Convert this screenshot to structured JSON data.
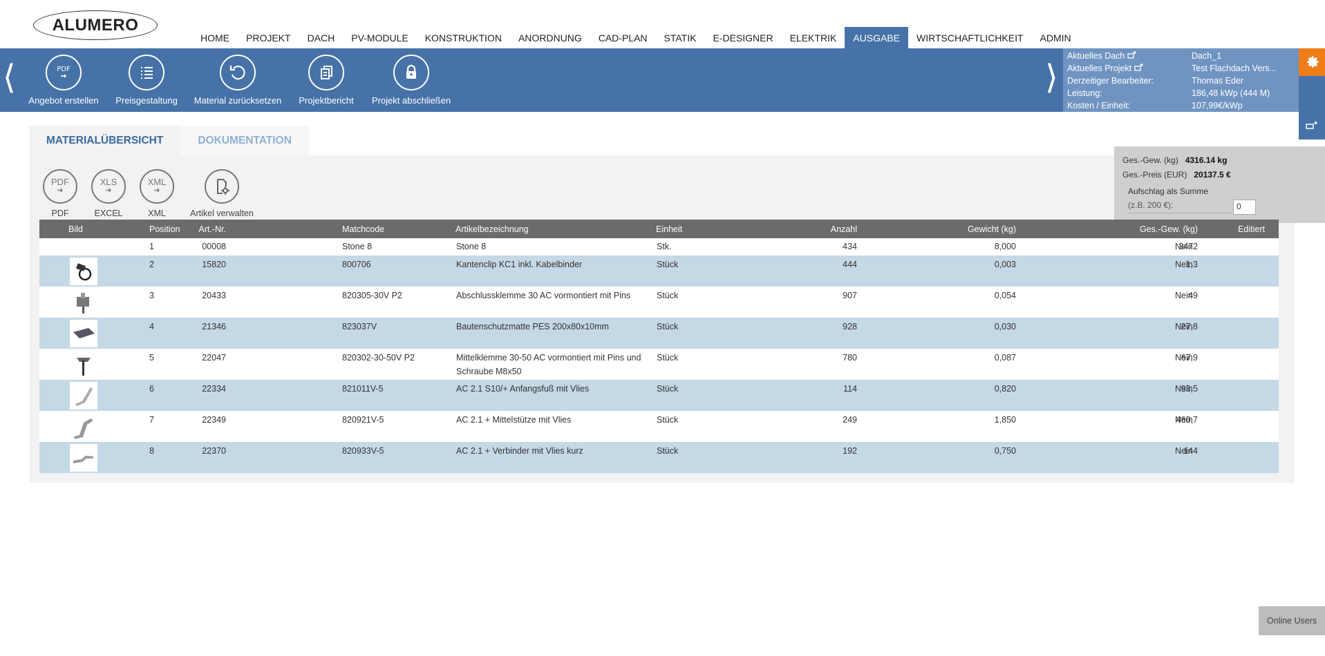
{
  "logo": "ALUMERO",
  "nav": [
    {
      "label": "HOME"
    },
    {
      "label": "PROJEKT"
    },
    {
      "label": "DACH"
    },
    {
      "label": "PV-MODULE"
    },
    {
      "label": "KONSTRUKTION"
    },
    {
      "label": "ANORDNUNG"
    },
    {
      "label": "CAD-PLAN"
    },
    {
      "label": "STATIK"
    },
    {
      "label": "E-DESIGNER"
    },
    {
      "label": "ELEKTRIK"
    },
    {
      "label": "AUSGABE",
      "active": true
    },
    {
      "label": "WIRTSCHAFTLICHKEIT"
    },
    {
      "label": "ADMIN"
    }
  ],
  "toolbar": {
    "buttons": [
      {
        "label": "Angebot erstellen",
        "icon": "pdf-export-icon"
      },
      {
        "label": "Preisgestaltung",
        "icon": "list-icon"
      },
      {
        "label": "Material zurücksetzen",
        "icon": "undo-icon"
      },
      {
        "label": "Projektbericht",
        "icon": "documents-icon"
      },
      {
        "label": "Projekt abschließen",
        "icon": "lock-icon"
      }
    ],
    "prev_arrow": "⟨",
    "next_arrow": "⟩"
  },
  "info": {
    "rows": [
      {
        "key": "Aktuelles Dach",
        "value": "Dach_1"
      },
      {
        "key": "Aktuelles Projekt",
        "value": "Test Flachdach Vers..."
      },
      {
        "key": "Derzeitiger Bearbeiter:",
        "value": "Thomas Eder"
      },
      {
        "key": "Leistung:",
        "value": "186,48 kWp (444 M)"
      },
      {
        "key": "Kosten / Einheit:",
        "value": "107,99€/kWp"
      }
    ]
  },
  "tabs": [
    {
      "label": "MATERIALÜBERSICHT",
      "active": true
    },
    {
      "label": "DOKUMENTATION",
      "active": false
    }
  ],
  "exports": [
    {
      "icon_text": "PDF",
      "label": "PDF"
    },
    {
      "icon_text": "XLS",
      "label": "EXCEL"
    },
    {
      "icon_text": "XML",
      "label": "XML"
    },
    {
      "icon_text": "",
      "label": "Artikel verwalten"
    }
  ],
  "summary": {
    "weight_label": "Ges.-Gew. (kg)",
    "weight_value": "4316.14 kg",
    "price_label": "Ges.-Preis (EUR)",
    "price_value": "20137.5 €",
    "surcharge_label": "Aufschlag als Summe",
    "surcharge_hint": "(z.B. 200 €):",
    "surcharge_value": "0"
  },
  "table": {
    "headers": {
      "bild": "Bild",
      "position": "Position",
      "artnr": "Art.-Nr.",
      "matchcode": "Matchcode",
      "bezeichnung": "Artikelbezeichnung",
      "einheit": "Einheit",
      "anzahl": "Anzahl",
      "gewicht": "Gewicht (kg)",
      "gesgew": "Ges.-Gew. (kg)",
      "editiert": "Editiert"
    },
    "rows": [
      {
        "position": "1",
        "artnr": "00008",
        "matchcode": "Stone 8",
        "bezeichnung": "Stone 8",
        "bezeichnung2": "",
        "einheit": "Stk.",
        "anzahl": "434",
        "gewicht": "8,000",
        "gesgew": "3472",
        "editiert": "Nein",
        "thumb": ""
      },
      {
        "position": "2",
        "artnr": "15820",
        "matchcode": "800706",
        "bezeichnung": "Kantenclip KC1 inkl. Kabelbinder",
        "bezeichnung2": "",
        "einheit": "Stück",
        "anzahl": "444",
        "gewicht": "0,003",
        "gesgew": "1,3",
        "editiert": "Nein",
        "thumb": "clip-thumbnail"
      },
      {
        "position": "3",
        "artnr": "20433",
        "matchcode": "820305-30V P2",
        "bezeichnung": "Abschlussklemme 30 AC vormontiert mit Pins",
        "bezeichnung2": "",
        "einheit": "Stück",
        "anzahl": "907",
        "gewicht": "0,054",
        "gesgew": "49",
        "editiert": "Nein",
        "thumb": "end-clamp-thumbnail"
      },
      {
        "position": "4",
        "artnr": "21346",
        "matchcode": "823037V",
        "bezeichnung": "Bautenschutzmatte PES 200x80x10mm",
        "bezeichnung2": "",
        "einheit": "Stück",
        "anzahl": "928",
        "gewicht": "0,030",
        "gesgew": "27,8",
        "editiert": "Nein",
        "thumb": "mat-thumbnail"
      },
      {
        "position": "5",
        "artnr": "22047",
        "matchcode": "820302-30-50V P2",
        "bezeichnung": "Mittelklemme 30-50 AC vormontiert mit Pins und",
        "bezeichnung2": "Schraube M8x50",
        "einheit": "Stück",
        "anzahl": "780",
        "gewicht": "0,087",
        "gesgew": "67,9",
        "editiert": "Nein",
        "thumb": "mid-clamp-thumbnail"
      },
      {
        "position": "6",
        "artnr": "22334",
        "matchcode": "821011V-5",
        "bezeichnung": "AC 2.1 S10/+ Anfangsfuß mit Vlies",
        "bezeichnung2": "",
        "einheit": "Stück",
        "anzahl": "114",
        "gewicht": "0,820",
        "gesgew": "93,5",
        "editiert": "Nein",
        "thumb": "foot-thumbnail"
      },
      {
        "position": "7",
        "artnr": "22349",
        "matchcode": "820921V-5",
        "bezeichnung": "AC 2.1 + Mittelstütze mit Vlies",
        "bezeichnung2": "",
        "einheit": "Stück",
        "anzahl": "249",
        "gewicht": "1,850",
        "gesgew": "460,7",
        "editiert": "Nein",
        "thumb": "support-thumbnail"
      },
      {
        "position": "8",
        "artnr": "22370",
        "matchcode": "820933V-5",
        "bezeichnung": "AC 2.1 + Verbinder mit Vlies kurz",
        "bezeichnung2": "",
        "einheit": "Stück",
        "anzahl": "192",
        "gewicht": "0,750",
        "gesgew": "144",
        "editiert": "Nein",
        "thumb": "connector-thumbnail"
      }
    ]
  },
  "online_users": "Online Users",
  "colors": {
    "accent": "#4672a8",
    "orange": "#ee7d1a",
    "row_alt": "#c5d8e6"
  }
}
